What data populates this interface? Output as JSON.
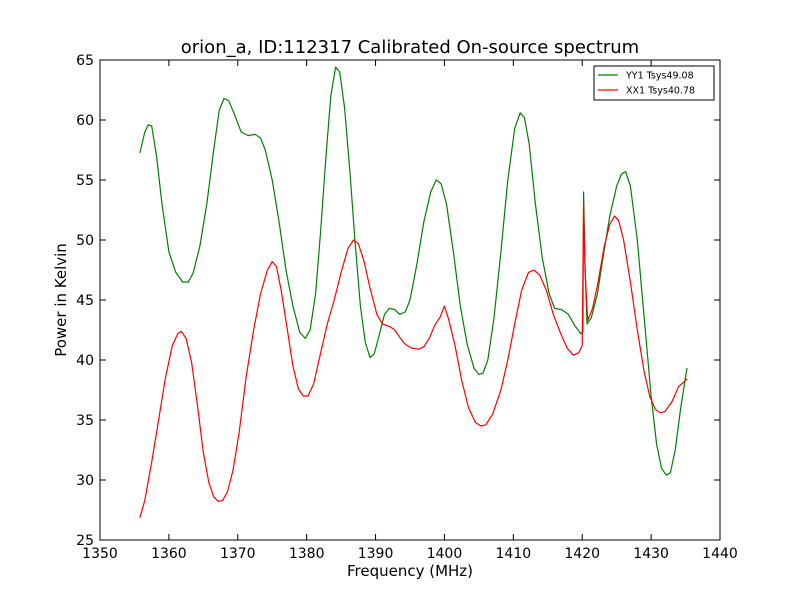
{
  "chart_data": {
    "type": "line",
    "title": "orion_a, ID:112317 Calibrated On-source spectrum",
    "xlabel": "Frequency (MHz)",
    "ylabel": "Power in Kelvin",
    "xlim": [
      1350,
      1440
    ],
    "ylim": [
      25,
      65
    ],
    "xticks": [
      1350,
      1360,
      1370,
      1380,
      1390,
      1400,
      1410,
      1420,
      1430,
      1440
    ],
    "yticks": [
      25,
      30,
      35,
      40,
      45,
      50,
      55,
      60,
      65
    ],
    "grid": false,
    "legend_position": "top-right",
    "series": [
      {
        "name": "YY1 Tsys49.08",
        "color": "#008000",
        "points": [
          [
            1355.8,
            57.3
          ],
          [
            1356.5,
            59.0
          ],
          [
            1357.0,
            59.6
          ],
          [
            1357.5,
            59.5
          ],
          [
            1358.2,
            57.0
          ],
          [
            1359.0,
            53.0
          ],
          [
            1360.0,
            49.0
          ],
          [
            1361.0,
            47.3
          ],
          [
            1362.0,
            46.5
          ],
          [
            1362.8,
            46.5
          ],
          [
            1363.5,
            47.2
          ],
          [
            1364.5,
            49.5
          ],
          [
            1365.5,
            53.0
          ],
          [
            1366.5,
            57.5
          ],
          [
            1367.3,
            60.8
          ],
          [
            1368.0,
            61.8
          ],
          [
            1368.7,
            61.6
          ],
          [
            1369.5,
            60.5
          ],
          [
            1370.5,
            59.0
          ],
          [
            1371.5,
            58.7
          ],
          [
            1372.5,
            58.8
          ],
          [
            1373.3,
            58.5
          ],
          [
            1374.0,
            57.5
          ],
          [
            1375.0,
            55.0
          ],
          [
            1376.0,
            51.5
          ],
          [
            1377.0,
            47.5
          ],
          [
            1378.0,
            44.5
          ],
          [
            1379.0,
            42.3
          ],
          [
            1379.8,
            41.8
          ],
          [
            1380.5,
            42.5
          ],
          [
            1381.3,
            45.5
          ],
          [
            1382.0,
            50.5
          ],
          [
            1382.8,
            57.0
          ],
          [
            1383.5,
            62.0
          ],
          [
            1384.2,
            64.4
          ],
          [
            1384.8,
            64.0
          ],
          [
            1385.5,
            61.0
          ],
          [
            1386.3,
            55.5
          ],
          [
            1387.0,
            50.0
          ],
          [
            1387.8,
            44.5
          ],
          [
            1388.5,
            41.5
          ],
          [
            1389.2,
            40.2
          ],
          [
            1389.8,
            40.5
          ],
          [
            1390.5,
            42.0
          ],
          [
            1391.3,
            43.8
          ],
          [
            1392.0,
            44.3
          ],
          [
            1392.8,
            44.2
          ],
          [
            1393.5,
            43.8
          ],
          [
            1394.3,
            44.0
          ],
          [
            1395.0,
            45.0
          ],
          [
            1396.0,
            48.0
          ],
          [
            1397.0,
            51.5
          ],
          [
            1398.0,
            54.0
          ],
          [
            1398.8,
            55.0
          ],
          [
            1399.5,
            54.7
          ],
          [
            1400.3,
            53.0
          ],
          [
            1401.3,
            49.0
          ],
          [
            1402.3,
            44.5
          ],
          [
            1403.3,
            41.3
          ],
          [
            1404.3,
            39.3
          ],
          [
            1405.0,
            38.8
          ],
          [
            1405.6,
            38.9
          ],
          [
            1406.3,
            40.0
          ],
          [
            1407.2,
            43.5
          ],
          [
            1408.2,
            49.0
          ],
          [
            1409.2,
            55.0
          ],
          [
            1410.2,
            59.3
          ],
          [
            1411.0,
            60.6
          ],
          [
            1411.6,
            60.2
          ],
          [
            1412.3,
            58.0
          ],
          [
            1413.2,
            53.0
          ],
          [
            1414.2,
            48.5
          ],
          [
            1415.2,
            45.5
          ],
          [
            1416.0,
            44.3
          ],
          [
            1417.0,
            44.2
          ],
          [
            1418.0,
            43.8
          ],
          [
            1419.0,
            42.8
          ],
          [
            1419.8,
            42.2
          ],
          [
            1420.1,
            42.4
          ],
          [
            1420.2,
            54.0
          ],
          [
            1420.4,
            48.0
          ],
          [
            1420.7,
            43.0
          ],
          [
            1421.3,
            43.5
          ],
          [
            1422.2,
            45.5
          ],
          [
            1423.0,
            48.5
          ],
          [
            1424.0,
            52.0
          ],
          [
            1425.0,
            54.5
          ],
          [
            1425.7,
            55.5
          ],
          [
            1426.3,
            55.7
          ],
          [
            1427.0,
            54.5
          ],
          [
            1428.0,
            50.0
          ],
          [
            1429.0,
            43.5
          ],
          [
            1430.0,
            37.0
          ],
          [
            1430.8,
            33.0
          ],
          [
            1431.5,
            31.0
          ],
          [
            1432.2,
            30.4
          ],
          [
            1432.8,
            30.6
          ],
          [
            1433.5,
            32.5
          ],
          [
            1434.3,
            36.0
          ],
          [
            1435.2,
            39.3
          ]
        ]
      },
      {
        "name": "XX1 Tsys40.78",
        "color": "#ff0000",
        "points": [
          [
            1355.8,
            26.9
          ],
          [
            1356.5,
            28.3
          ],
          [
            1357.5,
            31.5
          ],
          [
            1358.5,
            35.0
          ],
          [
            1359.5,
            38.5
          ],
          [
            1360.5,
            41.2
          ],
          [
            1361.3,
            42.2
          ],
          [
            1361.8,
            42.4
          ],
          [
            1362.5,
            41.8
          ],
          [
            1363.3,
            39.8
          ],
          [
            1364.2,
            36.0
          ],
          [
            1365.0,
            32.3
          ],
          [
            1365.8,
            29.8
          ],
          [
            1366.5,
            28.6
          ],
          [
            1367.2,
            28.2
          ],
          [
            1367.8,
            28.3
          ],
          [
            1368.5,
            29.0
          ],
          [
            1369.3,
            30.8
          ],
          [
            1370.2,
            34.0
          ],
          [
            1371.2,
            38.5
          ],
          [
            1372.3,
            42.5
          ],
          [
            1373.3,
            45.5
          ],
          [
            1374.3,
            47.5
          ],
          [
            1375.0,
            48.2
          ],
          [
            1375.6,
            47.8
          ],
          [
            1376.3,
            45.8
          ],
          [
            1377.2,
            42.5
          ],
          [
            1378.0,
            39.5
          ],
          [
            1378.8,
            37.6
          ],
          [
            1379.5,
            37.0
          ],
          [
            1380.2,
            37.0
          ],
          [
            1381.0,
            38.0
          ],
          [
            1382.0,
            40.5
          ],
          [
            1383.0,
            43.0
          ],
          [
            1384.0,
            45.0
          ],
          [
            1385.0,
            47.3
          ],
          [
            1386.0,
            49.3
          ],
          [
            1386.8,
            50.0
          ],
          [
            1387.5,
            49.7
          ],
          [
            1388.3,
            48.3
          ],
          [
            1389.2,
            46.0
          ],
          [
            1390.2,
            43.8
          ],
          [
            1391.0,
            43.0
          ],
          [
            1392.0,
            42.8
          ],
          [
            1392.8,
            42.5
          ],
          [
            1393.5,
            41.9
          ],
          [
            1394.3,
            41.3
          ],
          [
            1395.2,
            41.0
          ],
          [
            1396.2,
            40.9
          ],
          [
            1397.0,
            41.1
          ],
          [
            1397.8,
            41.8
          ],
          [
            1398.6,
            42.9
          ],
          [
            1399.4,
            43.6
          ],
          [
            1400.0,
            44.5
          ],
          [
            1400.6,
            43.4
          ],
          [
            1401.5,
            41.3
          ],
          [
            1402.5,
            38.3
          ],
          [
            1403.5,
            36.0
          ],
          [
            1404.5,
            34.8
          ],
          [
            1405.3,
            34.5
          ],
          [
            1406.0,
            34.6
          ],
          [
            1407.0,
            35.5
          ],
          [
            1408.2,
            37.5
          ],
          [
            1409.2,
            40.0
          ],
          [
            1410.2,
            43.0
          ],
          [
            1411.2,
            45.8
          ],
          [
            1412.2,
            47.3
          ],
          [
            1413.0,
            47.5
          ],
          [
            1413.8,
            47.1
          ],
          [
            1414.8,
            45.8
          ],
          [
            1415.8,
            43.8
          ],
          [
            1416.8,
            42.3
          ],
          [
            1417.8,
            41.0
          ],
          [
            1418.7,
            40.4
          ],
          [
            1419.5,
            40.6
          ],
          [
            1420.0,
            41.2
          ],
          [
            1420.2,
            53.0
          ],
          [
            1420.4,
            47.5
          ],
          [
            1420.8,
            43.3
          ],
          [
            1421.5,
            44.3
          ],
          [
            1422.3,
            46.5
          ],
          [
            1423.2,
            49.5
          ],
          [
            1424.0,
            51.3
          ],
          [
            1424.7,
            52.0
          ],
          [
            1425.3,
            51.6
          ],
          [
            1426.0,
            50.0
          ],
          [
            1427.0,
            46.5
          ],
          [
            1428.0,
            42.5
          ],
          [
            1429.0,
            39.0
          ],
          [
            1429.8,
            37.0
          ],
          [
            1430.6,
            35.9
          ],
          [
            1431.3,
            35.6
          ],
          [
            1432.0,
            35.7
          ],
          [
            1433.0,
            36.5
          ],
          [
            1434.0,
            37.8
          ],
          [
            1435.2,
            38.4
          ]
        ]
      }
    ]
  }
}
